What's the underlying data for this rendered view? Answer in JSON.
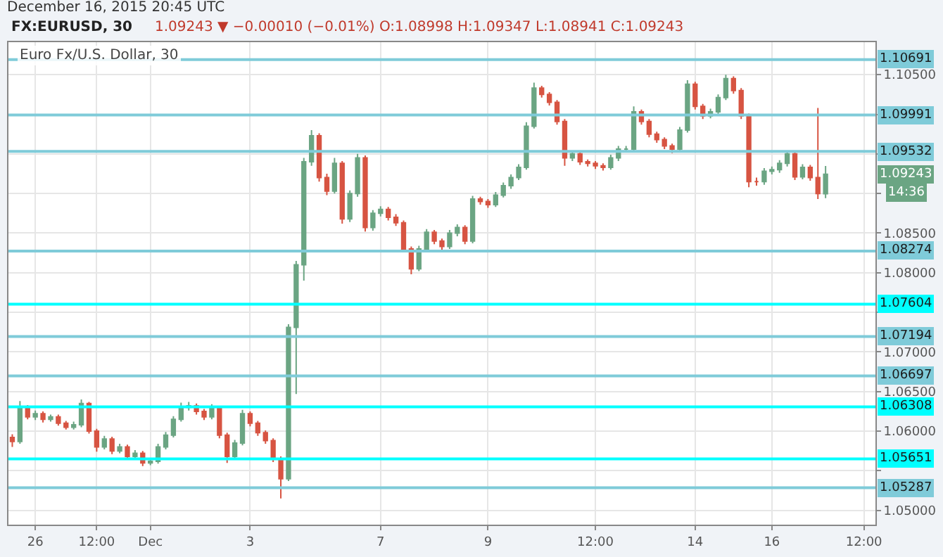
{
  "chart_data": {
    "type": "candlestick",
    "title": "FX:EURUSD, 30",
    "subtitle": "1.09243 ▼ −0.00010 (−0.01%) O:1.08998 H:1.09347 L:1.08941 C:1.09243",
    "annotations": [
      "December 16, 2015 20:45 UTC",
      "Euro Fx/U.S. Dollar, 30",
      "1.09243",
      "14:36"
    ],
    "categories": [
      null,
      null,
      null,
      "26",
      null,
      null,
      null,
      null,
      null,
      null,
      null,
      "12:00",
      null,
      null,
      null,
      null,
      null,
      null,
      "Dec",
      null,
      null,
      null,
      null,
      null,
      null,
      null,
      null,
      null,
      null,
      null,
      null,
      "3",
      null,
      null,
      null,
      null,
      null,
      null,
      null,
      null,
      null,
      null,
      null,
      null,
      null,
      null,
      null,
      null,
      "7",
      null,
      null,
      null,
      null,
      null,
      null,
      null,
      null,
      null,
      null,
      null,
      null,
      null,
      "9",
      null,
      null,
      null,
      null,
      null,
      null,
      null,
      null,
      null,
      null,
      null,
      null,
      null,
      "12:00",
      null,
      null,
      null,
      null,
      null,
      null,
      null,
      null,
      null,
      null,
      null,
      null,
      "14",
      null,
      null,
      null,
      null,
      null,
      null,
      null,
      null,
      null,
      "16",
      null,
      null,
      null,
      null,
      null,
      null,
      null,
      null,
      null,
      null,
      null,
      "12:00",
      null
    ],
    "ohlc": [
      [
        1.0592,
        1.0596,
        1.058,
        1.0587
      ],
      [
        1.0587,
        1.0638,
        1.0584,
        1.063
      ],
      [
        1.063,
        1.0633,
        1.0615,
        1.0618
      ],
      [
        1.0618,
        1.0626,
        1.0614,
        1.0622
      ],
      [
        1.0622,
        1.0625,
        1.0611,
        1.0615
      ],
      [
        1.0615,
        1.0621,
        1.0612,
        1.0618
      ],
      [
        1.0618,
        1.0621,
        1.0607,
        1.061
      ],
      [
        1.061,
        1.0613,
        1.0602,
        1.0605
      ],
      [
        1.0605,
        1.0612,
        1.0602,
        1.0608
      ],
      [
        1.0608,
        1.064,
        1.0605,
        1.0635
      ],
      [
        1.0635,
        1.0637,
        1.0597,
        1.06
      ],
      [
        1.06,
        1.0603,
        1.0574,
        1.058
      ],
      [
        1.058,
        1.0594,
        1.0577,
        1.059
      ],
      [
        1.059,
        1.0593,
        1.0571,
        1.0575
      ],
      [
        1.0575,
        1.0584,
        1.0572,
        1.058
      ],
      [
        1.058,
        1.0583,
        1.0565,
        1.0568
      ],
      [
        1.0568,
        1.0576,
        1.0565,
        1.0572
      ],
      [
        1.0572,
        1.0575,
        1.0556,
        1.056
      ],
      [
        1.056,
        1.0566,
        1.0557,
        1.0562
      ],
      [
        1.0562,
        1.0584,
        1.0559,
        1.058
      ],
      [
        1.058,
        1.0599,
        1.0577,
        1.0595
      ],
      [
        1.0595,
        1.0619,
        1.0592,
        1.0615
      ],
      [
        1.0615,
        1.0636,
        1.0612,
        1.063
      ],
      [
        1.063,
        1.0637,
        1.0626,
        1.0632
      ],
      [
        1.0632,
        1.0635,
        1.0621,
        1.0625
      ],
      [
        1.0625,
        1.0628,
        1.0614,
        1.0618
      ],
      [
        1.0618,
        1.0634,
        1.0615,
        1.063
      ],
      [
        1.063,
        1.0632,
        1.0591,
        1.0595
      ],
      [
        1.0595,
        1.0598,
        1.056,
        1.0568
      ],
      [
        1.0568,
        1.0589,
        1.0565,
        1.0585
      ],
      [
        1.0585,
        1.0627,
        1.0582,
        1.0622
      ],
      [
        1.0622,
        1.0625,
        1.0606,
        1.061
      ],
      [
        1.061,
        1.0613,
        1.0594,
        1.0598
      ],
      [
        1.0598,
        1.0601,
        1.0584,
        1.0588
      ],
      [
        1.0588,
        1.0591,
        1.0561,
        1.0565
      ],
      [
        1.0565,
        1.0568,
        1.0515,
        1.054
      ],
      [
        1.054,
        1.0735,
        1.0537,
        1.0731
      ],
      [
        1.0731,
        1.0815,
        1.0647,
        1.081
      ],
      [
        1.081,
        1.0945,
        1.079,
        1.094
      ],
      [
        1.094,
        1.098,
        1.0935,
        1.0973
      ],
      [
        1.0973,
        1.0976,
        1.0915,
        1.092
      ],
      [
        1.092,
        1.0925,
        1.0898,
        1.0903
      ],
      [
        1.0903,
        1.0945,
        1.09,
        1.0938
      ],
      [
        1.0938,
        1.0941,
        1.0862,
        1.0868
      ],
      [
        1.0868,
        1.0904,
        1.0864,
        1.09
      ],
      [
        1.09,
        1.095,
        1.0896,
        1.0945
      ],
      [
        1.0945,
        1.0948,
        1.0852,
        1.0857
      ],
      [
        1.0857,
        1.0879,
        1.0853,
        1.0875
      ],
      [
        1.0875,
        1.0884,
        1.0871,
        1.088
      ],
      [
        1.088,
        1.0883,
        1.0866,
        1.087
      ],
      [
        1.087,
        1.0874,
        1.0859,
        1.0863
      ],
      [
        1.0863,
        1.0866,
        1.0826,
        1.083
      ],
      [
        1.083,
        1.0833,
        1.0798,
        1.0805
      ],
      [
        1.0805,
        1.0834,
        1.0802,
        1.083
      ],
      [
        1.083,
        1.0855,
        1.0827,
        1.0851
      ],
      [
        1.0851,
        1.0854,
        1.0836,
        1.084
      ],
      [
        1.084,
        1.0843,
        1.0829,
        1.0833
      ],
      [
        1.0833,
        1.0854,
        1.083,
        1.085
      ],
      [
        1.085,
        1.0861,
        1.0846,
        1.0857
      ],
      [
        1.0857,
        1.086,
        1.0836,
        1.084
      ],
      [
        1.084,
        1.0897,
        1.0837,
        1.0893
      ],
      [
        1.0893,
        1.0896,
        1.0886,
        1.089
      ],
      [
        1.089,
        1.0893,
        1.0882,
        1.0886
      ],
      [
        1.0886,
        1.0902,
        1.0883,
        1.0898
      ],
      [
        1.0898,
        1.0914,
        1.0895,
        1.091
      ],
      [
        1.091,
        1.0924,
        1.0906,
        1.092
      ],
      [
        1.092,
        1.0937,
        1.0917,
        1.0933
      ],
      [
        1.0933,
        1.099,
        1.093,
        1.0985
      ],
      [
        1.0985,
        1.104,
        1.0982,
        1.1033
      ],
      [
        1.1033,
        1.1036,
        1.1021,
        1.1025
      ],
      [
        1.1025,
        1.1028,
        1.1011,
        1.1015
      ],
      [
        1.1015,
        1.1018,
        1.0987,
        1.0991
      ],
      [
        1.0991,
        1.0994,
        1.0935,
        1.0945
      ],
      [
        1.0945,
        1.0954,
        1.0941,
        1.095
      ],
      [
        1.095,
        1.0953,
        1.0936,
        1.094
      ],
      [
        1.094,
        1.0943,
        1.0934,
        1.0938
      ],
      [
        1.0938,
        1.0941,
        1.0931,
        1.0935
      ],
      [
        1.0935,
        1.0938,
        1.0929,
        1.0933
      ],
      [
        1.0933,
        1.0949,
        1.093,
        1.0945
      ],
      [
        1.0945,
        1.096,
        1.0941,
        1.0956
      ],
      [
        1.0956,
        1.096,
        1.0952,
        1.0956
      ],
      [
        1.0956,
        1.101,
        1.0953,
        1.1003
      ],
      [
        1.1003,
        1.1006,
        1.0987,
        1.0991
      ],
      [
        1.0991,
        1.0994,
        1.0971,
        1.0975
      ],
      [
        1.0975,
        1.0978,
        1.0964,
        1.0968
      ],
      [
        1.0968,
        1.0971,
        1.0956,
        1.096
      ],
      [
        1.096,
        1.0963,
        1.0951,
        1.0956
      ],
      [
        1.0956,
        1.0984,
        1.0953,
        1.098
      ],
      [
        1.098,
        1.1043,
        1.0977,
        1.1038
      ],
      [
        1.1038,
        1.1041,
        1.1006,
        1.101
      ],
      [
        1.101,
        1.1013,
        1.0994,
        1.0998
      ],
      [
        1.0998,
        1.1007,
        1.0995,
        1.1003
      ],
      [
        1.1003,
        1.1025,
        1.1,
        1.1021
      ],
      [
        1.1021,
        1.105,
        1.1018,
        1.1045
      ],
      [
        1.1045,
        1.1048,
        1.1026,
        1.103
      ],
      [
        1.103,
        1.1033,
        1.0994,
        1.0998
      ],
      [
        1.0998,
        1.1001,
        1.0908,
        1.0915
      ],
      [
        1.0915,
        1.092,
        1.091,
        1.0915
      ],
      [
        1.0915,
        1.0932,
        1.0911,
        1.0928
      ],
      [
        1.0928,
        1.0934,
        1.0924,
        1.093
      ],
      [
        1.093,
        1.0942,
        1.0926,
        1.0938
      ],
      [
        1.0938,
        1.0954,
        1.0934,
        1.095
      ],
      [
        1.095,
        1.0953,
        1.0917,
        1.0921
      ],
      [
        1.0921,
        1.0937,
        1.0918,
        1.0933
      ],
      [
        1.0933,
        1.0936,
        1.0916,
        1.092
      ],
      [
        1.092,
        1.1008,
        1.0893,
        1.09
      ],
      [
        1.08998,
        1.09347,
        1.08941,
        1.09243
      ],
      null,
      null,
      null,
      null,
      null,
      null
    ],
    "ylim": [
      1.0482,
      1.1091
    ],
    "yticks": [
      {
        "value": 1.05,
        "label": "1.05000"
      },
      {
        "value": 1.055,
        "label": null
      },
      {
        "value": 1.06,
        "label": "1.06000"
      },
      {
        "value": 1.065,
        "label": "1.06500"
      },
      {
        "value": 1.07,
        "label": "1.07000"
      },
      {
        "value": 1.075,
        "label": null
      },
      {
        "value": 1.08,
        "label": "1.08000"
      },
      {
        "value": 1.085,
        "label": "1.08500"
      },
      {
        "value": 1.09,
        "label": null
      },
      {
        "value": 1.095,
        "label": null
      },
      {
        "value": 1.1,
        "label": null
      },
      {
        "value": 1.105,
        "label": "1.10500"
      }
    ],
    "grid": true,
    "ref_lines": [
      {
        "axis": "y",
        "value": 1.10691,
        "label": "1.10691",
        "color": "#7fcbd9"
      },
      {
        "axis": "y",
        "value": 1.09991,
        "label": "1.09991",
        "color": "#7fcbd9"
      },
      {
        "axis": "y",
        "value": 1.09532,
        "label": "1.09532",
        "color": "#7fcbd9"
      },
      {
        "axis": "y",
        "value": 1.08274,
        "label": "1.08274",
        "color": "#7fcbd9"
      },
      {
        "axis": "y",
        "value": 1.07604,
        "label": "1.07604",
        "color": "#00ffff"
      },
      {
        "axis": "y",
        "value": 1.07194,
        "label": "1.07194",
        "color": "#7fcbd9"
      },
      {
        "axis": "y",
        "value": 1.06697,
        "label": "1.06697",
        "color": "#7fcbd9"
      },
      {
        "axis": "y",
        "value": 1.06308,
        "label": "1.06308",
        "color": "#00ffff"
      },
      {
        "axis": "y",
        "value": 1.05651,
        "label": "1.05651",
        "color": "#00ffff"
      },
      {
        "axis": "y",
        "value": 1.05287,
        "label": "1.05287",
        "color": "#7fcbd9"
      }
    ]
  }
}
